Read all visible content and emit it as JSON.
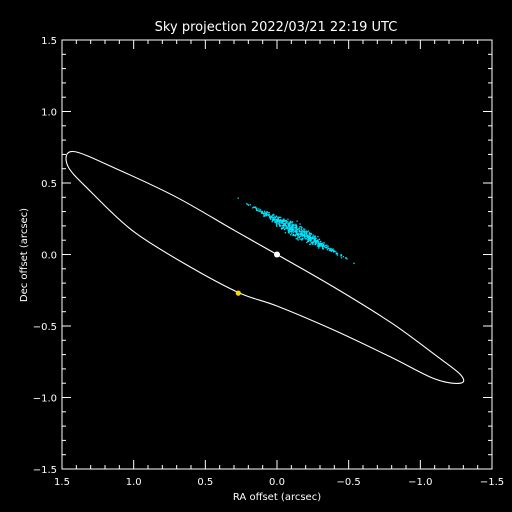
{
  "chart_data": {
    "type": "scatter",
    "title": "Sky projection 2022/03/21 22:19 UTC",
    "xlabel": "RA offset (arcsec)",
    "ylabel": "Dec offset (arcsec)",
    "xlim": [
      1.5,
      -1.5
    ],
    "ylim": [
      -1.5,
      1.5
    ],
    "xticks": [
      1.5,
      1.0,
      0.5,
      0.0,
      -0.5,
      -1.0,
      -1.5
    ],
    "xtick_labels": [
      "1.5",
      "1.0",
      "0.5",
      "0.0",
      "−0.5",
      "−1.0",
      "−1.5"
    ],
    "yticks": [
      -1.5,
      -1.0,
      -0.5,
      0.0,
      0.5,
      1.0,
      1.5
    ],
    "ytick_labels": [
      "−1.5",
      "−1.0",
      "−0.5",
      "0.0",
      "0.5",
      "1.0",
      "1.5"
    ],
    "grid": false,
    "background": "#000000",
    "axis_color": "#ffffff",
    "orbit": {
      "color": "#ffffff",
      "points": [
        [
          1.42,
          0.72
        ],
        [
          1.1,
          0.59
        ],
        [
          0.7,
          0.4
        ],
        [
          0.3,
          0.17
        ],
        [
          0.0,
          0.0
        ],
        [
          -0.4,
          -0.23
        ],
        [
          -0.8,
          -0.48
        ],
        [
          -1.1,
          -0.7
        ],
        [
          -1.28,
          -0.84
        ],
        [
          -1.28,
          -0.9
        ],
        [
          -1.1,
          -0.87
        ],
        [
          -0.8,
          -0.72
        ],
        [
          -0.4,
          -0.53
        ],
        [
          0.0,
          -0.36
        ],
        [
          0.26,
          -0.27
        ],
        [
          0.6,
          -0.09
        ],
        [
          1.0,
          0.16
        ],
        [
          1.3,
          0.44
        ],
        [
          1.46,
          0.62
        ]
      ]
    },
    "star": {
      "x": 0.0,
      "y": 0.0,
      "color": "#ffffff"
    },
    "companion": {
      "x": 0.27,
      "y": -0.27,
      "color": "#ffd700"
    },
    "posterior_cloud": {
      "color": "#00e5ff",
      "center": [
        -0.13,
        0.17
      ],
      "direction_deg": -29,
      "half_length": 0.36,
      "half_width": 0.025,
      "count": 600
    }
  }
}
